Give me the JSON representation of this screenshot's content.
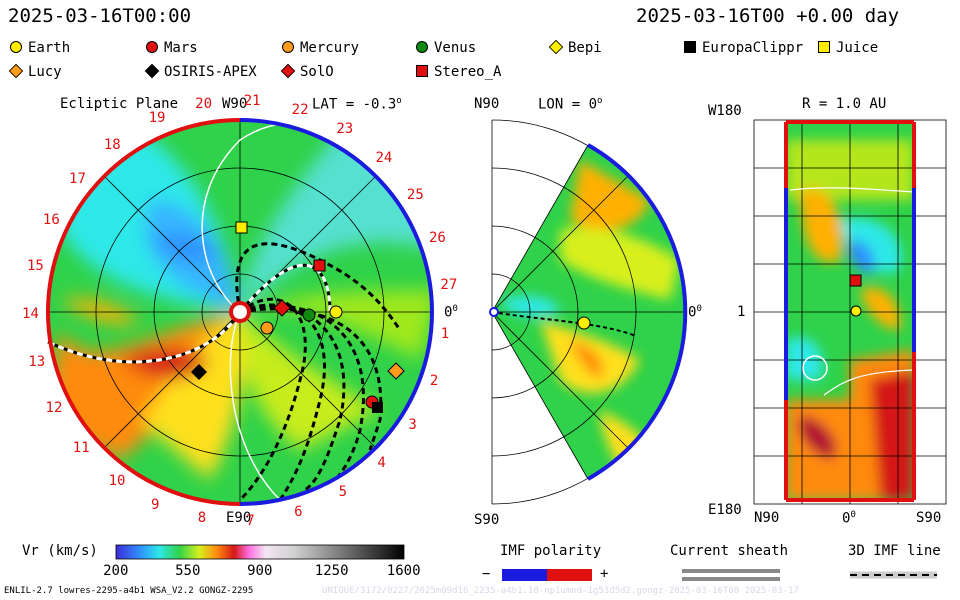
{
  "header": {
    "left_timestamp": "2025-03-16T00:00",
    "right_timestamp": "2025-03-16T00 +0.00 day"
  },
  "legend": [
    {
      "label": "Earth",
      "shape": "circle",
      "color": "#ffee00"
    },
    {
      "label": "Mars",
      "shape": "circle",
      "color": "#e01010"
    },
    {
      "label": "Mercury",
      "shape": "circle",
      "color": "#ff9a1a"
    },
    {
      "label": "Venus",
      "shape": "circle",
      "color": "#108a10"
    },
    {
      "label": "Bepi",
      "shape": "diamond",
      "color": "#ffee00"
    },
    {
      "label": "EuropaClippr",
      "shape": "square",
      "color": "#000000"
    },
    {
      "label": "Juice",
      "shape": "square",
      "color": "#ffee00"
    },
    {
      "label": "Lucy",
      "shape": "diamond",
      "color": "#ff9a1a"
    },
    {
      "label": "OSIRIS-APEX",
      "shape": "diamond",
      "color": "#000000"
    },
    {
      "label": "SolO",
      "shape": "diamond",
      "color": "#e01010"
    },
    {
      "label": "Stereo_A",
      "shape": "square",
      "color": "#e01010"
    }
  ],
  "panels": {
    "ecliptic": {
      "title": "Ecliptic Plane",
      "lat": "LAT = -0.3",
      "deg": "o",
      "top_label": "W90",
      "bottom_label": "E90",
      "right_label": "0",
      "right_deg": "0",
      "carrington_ticks": [
        "19",
        "20",
        "21",
        "22",
        "23",
        "24",
        "25",
        "26",
        "27",
        "1",
        "2",
        "3",
        "4",
        "5",
        "6",
        "7",
        "8",
        "9",
        "10",
        "11",
        "12",
        "13",
        "14",
        "15",
        "16",
        "17",
        "18"
      ]
    },
    "meridional": {
      "lon": "LON = 0",
      "deg": "o",
      "top_label": "N90",
      "bottom_label": "S90",
      "right_label": "0",
      "right_deg": "0"
    },
    "radial": {
      "title": "R = 1.0 AU",
      "y_top": "W180",
      "y_mid": "1",
      "y_bottom": "E180",
      "x_left": "N90",
      "x_mid": "0",
      "x_mid_deg": "0",
      "x_right": "S90"
    }
  },
  "colorbar": {
    "label": "Vr (km/s)",
    "ticks": [
      "200",
      "550",
      "900",
      "1250",
      "1600"
    ]
  },
  "imf": {
    "polarity_label": "IMF polarity",
    "minus": "−",
    "plus": "+",
    "sheath_label": "Current sheath",
    "line_label": "3D IMF line"
  },
  "footer": {
    "left": "ENLIL-2.7 lowres-2295-a4b1 WSA_V2.2 GONGZ-2295",
    "right": "UNIQUE/3172/0227/2025m09d16_2235-a4b1.10-np1umnd-1g53d5d2.gongz-2025-03-16T00   2025-03-17"
  },
  "chart_data": {
    "type": "heatmap",
    "variable": "Vr (km/s)",
    "colorbar_range": [
      200,
      1600
    ],
    "objects_ecliptic": [
      {
        "name": "Earth",
        "shape": "circle",
        "color": "#ffee00"
      },
      {
        "name": "Mars",
        "shape": "circle",
        "color": "#e01010"
      },
      {
        "name": "Mercury",
        "shape": "circle",
        "color": "#ff9a1a"
      },
      {
        "name": "Venus",
        "shape": "circle",
        "color": "#108a10"
      },
      {
        "name": "Juice",
        "shape": "square",
        "color": "#ffee00"
      },
      {
        "name": "Stereo_A",
        "shape": "square",
        "color": "#e01010"
      },
      {
        "name": "SolO",
        "shape": "diamond",
        "color": "#e01010"
      },
      {
        "name": "Lucy",
        "shape": "diamond",
        "color": "#ff9a1a"
      },
      {
        "name": "OSIRIS-APEX",
        "shape": "diamond",
        "color": "#000000"
      },
      {
        "name": "EuropaClippr",
        "shape": "square",
        "color": "#000000"
      },
      {
        "name": "Bepi",
        "shape": "diamond",
        "color": "#ffee00"
      }
    ]
  }
}
